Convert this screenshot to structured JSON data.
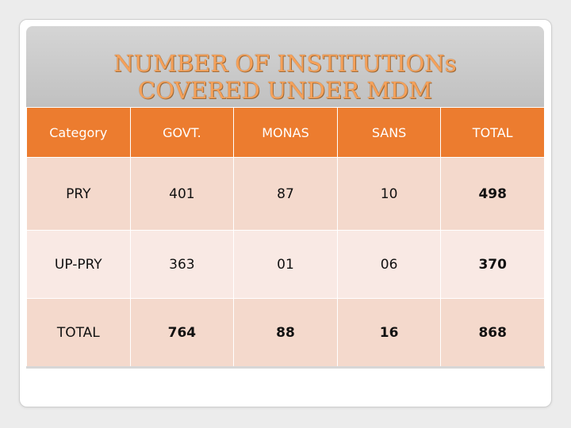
{
  "title": {
    "line1": "NUMBER OF INSTITUTIONs",
    "line2": "COVERED UNDER MDM"
  },
  "colors": {
    "header_bg": "#ec7c2f",
    "row_dark": "#f4d9cc",
    "row_light": "#f9e9e4",
    "title_text": "#f5a15a"
  },
  "table": {
    "headers": [
      "Category",
      "GOVT.",
      "MONAS",
      "SANS",
      "TOTAL"
    ],
    "rows": [
      [
        "PRY",
        "401",
        "87",
        "10",
        "498"
      ],
      [
        "UP-PRY",
        "363",
        "01",
        "06",
        "370"
      ],
      [
        "TOTAL",
        "764",
        "88",
        "16",
        "868"
      ]
    ]
  }
}
